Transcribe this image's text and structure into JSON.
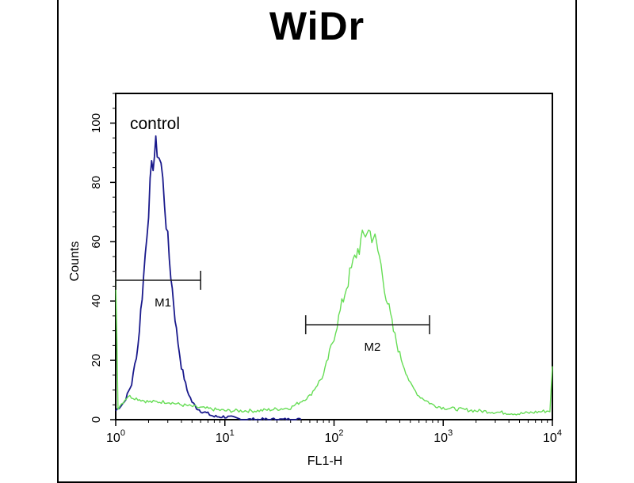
{
  "chart_data": {
    "type": "line",
    "title": "WiDr",
    "xlabel": "FL1-H",
    "ylabel": "Counts",
    "x_scale": "log",
    "xlim": [
      1,
      10000
    ],
    "ylim": [
      0,
      110
    ],
    "x_ticks": [
      {
        "base": "10",
        "exp": "0"
      },
      {
        "base": "10",
        "exp": "1"
      },
      {
        "base": "10",
        "exp": "2"
      },
      {
        "base": "10",
        "exp": "3"
      },
      {
        "base": "10",
        "exp": "4"
      }
    ],
    "y_ticks": [
      "0",
      "20",
      "40",
      "60",
      "80",
      "100"
    ],
    "series": [
      {
        "name": "control",
        "color": "#1a1a8c",
        "x": [
          1.0,
          1.2,
          1.4,
          1.6,
          1.8,
          2.0,
          2.2,
          2.4,
          2.6,
          2.8,
          3.0,
          3.3,
          3.6,
          4.0,
          4.5,
          5.0,
          5.5,
          6.0,
          7.0,
          8.0,
          10,
          15,
          20,
          30,
          50
        ],
        "y": [
          3,
          6,
          12,
          25,
          48,
          72,
          88,
          92,
          86,
          74,
          60,
          44,
          30,
          18,
          10,
          6,
          4,
          3,
          2,
          1,
          1,
          0,
          0,
          0,
          0
        ]
      },
      {
        "name": "",
        "color": "#66dd55",
        "x": [
          1.0,
          1.05,
          1.3,
          1.6,
          2.0,
          3.0,
          4.0,
          6.0,
          10,
          20,
          40,
          60,
          80,
          100,
          130,
          160,
          200,
          230,
          260,
          300,
          350,
          400,
          500,
          600,
          800,
          1000,
          2000,
          5000,
          9500,
          10000
        ],
        "y": [
          50,
          4,
          8,
          7,
          6,
          6,
          5,
          4,
          3,
          3,
          4,
          8,
          15,
          28,
          45,
          56,
          64,
          62,
          55,
          42,
          30,
          22,
          12,
          8,
          5,
          4,
          3,
          2,
          3,
          18
        ]
      }
    ],
    "annotations": [
      {
        "text": "control"
      }
    ],
    "markers": [
      {
        "label": "M1",
        "x_start": 1.0,
        "x_end": 6.0,
        "y": 47
      },
      {
        "label": "M2",
        "x_start": 55,
        "x_end": 750,
        "y": 32
      }
    ],
    "grid": false,
    "legend": "none"
  }
}
